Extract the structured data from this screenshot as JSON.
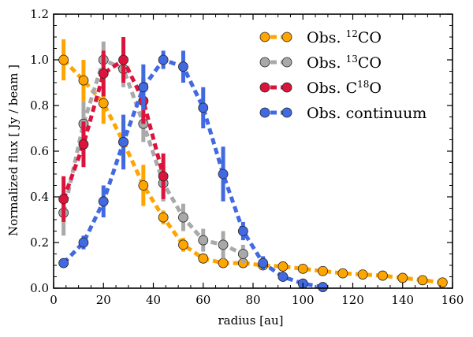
{
  "chart_data": {
    "type": "line",
    "title": "",
    "xlabel": "radius [au]",
    "ylabel": "Normalized flux [ Jy / beam ]",
    "xlim": [
      0,
      160
    ],
    "ylim": [
      0.0,
      1.2
    ],
    "xticks": [
      "0",
      "20",
      "40",
      "60",
      "80",
      "100",
      "120",
      "140",
      "160"
    ],
    "yticks": [
      "0.0",
      "0.2",
      "0.4",
      "0.6",
      "0.8",
      "1.0",
      "1.2"
    ],
    "legend_position": "top-right",
    "series": [
      {
        "name": "Obs. ",
        "sup": "12",
        "suffix": "CO",
        "color": "#FFA500",
        "x": [
          4,
          12,
          20,
          28,
          36,
          44,
          52,
          60,
          68,
          76,
          84,
          92,
          100,
          108,
          116,
          124,
          132,
          140,
          148,
          156
        ],
        "y": [
          1.0,
          0.91,
          0.81,
          0.64,
          0.45,
          0.31,
          0.19,
          0.13,
          0.11,
          0.11,
          0.1,
          0.095,
          0.085,
          0.075,
          0.065,
          0.06,
          0.055,
          0.045,
          0.035,
          0.025
        ],
        "err": [
          0.09,
          0.09,
          0.09,
          0.09,
          0.09,
          0.03,
          0.03,
          0.0,
          0.0,
          0.0,
          0.0,
          0.0,
          0.0,
          0.0,
          0.0,
          0.0,
          0.0,
          0.0,
          0.0,
          0.0
        ]
      },
      {
        "name": "Obs. ",
        "sup": "13",
        "suffix": "CO",
        "color": "#A9A9A9",
        "x": [
          4,
          12,
          20,
          28,
          36,
          44,
          52,
          60,
          68,
          76
        ],
        "y": [
          0.33,
          0.72,
          1.0,
          0.96,
          0.72,
          0.46,
          0.31,
          0.21,
          0.19,
          0.15
        ],
        "err": [
          0.1,
          0.1,
          0.08,
          0.08,
          0.08,
          0.08,
          0.06,
          0.05,
          0.06,
          0.04
        ]
      },
      {
        "name": "Obs. C",
        "sup": "18",
        "suffix": "O",
        "color": "#DC143C",
        "x": [
          4,
          12,
          20,
          28,
          36,
          44
        ],
        "y": [
          0.39,
          0.63,
          0.94,
          1.0,
          0.82,
          0.49
        ],
        "err": [
          0.1,
          0.1,
          0.1,
          0.1,
          0.1,
          0.1
        ]
      },
      {
        "name": "Obs. continuum",
        "sup": "",
        "suffix": "",
        "color": "#4169E1",
        "x": [
          4,
          12,
          20,
          28,
          36,
          44,
          52,
          60,
          68,
          76,
          84,
          92,
          100,
          108
        ],
        "y": [
          0.11,
          0.2,
          0.38,
          0.64,
          0.88,
          1.0,
          0.97,
          0.79,
          0.5,
          0.25,
          0.11,
          0.05,
          0.02,
          0.005
        ],
        "err": [
          0.0,
          0.03,
          0.07,
          0.12,
          0.1,
          0.04,
          0.07,
          0.09,
          0.12,
          0.04,
          0.03,
          0.0,
          0.0,
          0.0
        ]
      }
    ]
  }
}
